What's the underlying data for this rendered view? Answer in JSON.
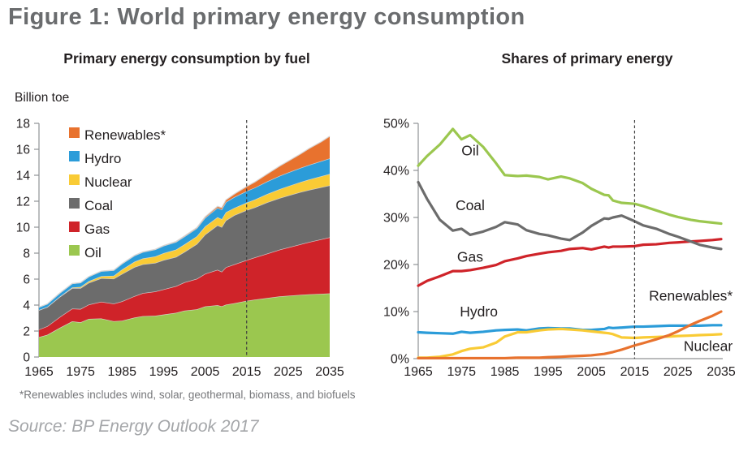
{
  "figure": {
    "title": "Figure 1: World primary energy consumption",
    "footnote": "*Renewables includes wind, solar, geothermal, biomass, and biofuels",
    "source": "Source: BP Energy Outlook 2017"
  },
  "colors": {
    "oil": "#9BC74F",
    "gas": "#CF2329",
    "coal": "#6C6C6C",
    "nuclear": "#F9CB35",
    "hydro": "#2B9CD9",
    "renewables": "#E8722E",
    "axis": "#909295",
    "area_edge": "#D8D8D8",
    "marker_dash": "#3F3F3F",
    "text": "#231F20",
    "title_gray": "#6A6C6E",
    "footnote_gray": "#77787B",
    "source_gray": "#A4A6A9"
  },
  "chart_data": [
    {
      "id": "consumption",
      "type": "area",
      "stacked": true,
      "title": "Primary energy consumption by fuel",
      "unit_label": "Billion toe",
      "grid": false,
      "legend_position": "top-left-inside",
      "marker_year": 2015,
      "ylim": [
        0,
        18
      ],
      "y_ticks": [
        0,
        2,
        4,
        6,
        8,
        10,
        12,
        14,
        16,
        18
      ],
      "y_tick_suffix": "",
      "x_ticks": [
        1965,
        1975,
        1985,
        1995,
        2005,
        2015,
        2025,
        2035
      ],
      "x": [
        1965,
        1967,
        1970,
        1973,
        1975,
        1977,
        1980,
        1983,
        1985,
        1988,
        1990,
        1993,
        1995,
        1998,
        2000,
        2003,
        2005,
        2008,
        2009,
        2010,
        2012,
        2015,
        2017,
        2020,
        2023,
        2025,
        2028,
        2030,
        2033,
        2035
      ],
      "series": [
        {
          "name": "Oil",
          "key": "oil",
          "values": [
            1.53,
            1.71,
            2.25,
            2.75,
            2.67,
            2.94,
            2.97,
            2.76,
            2.8,
            3.04,
            3.15,
            3.18,
            3.27,
            3.41,
            3.57,
            3.67,
            3.9,
            3.99,
            3.91,
            4.03,
            4.14,
            4.33,
            4.42,
            4.55,
            4.67,
            4.72,
            4.79,
            4.83,
            4.87,
            4.9
          ]
        },
        {
          "name": "Gas",
          "key": "gas",
          "values": [
            0.59,
            0.66,
            0.83,
            0.98,
            1.03,
            1.1,
            1.29,
            1.35,
            1.49,
            1.65,
            1.77,
            1.87,
            1.94,
            2.05,
            2.18,
            2.35,
            2.51,
            2.73,
            2.66,
            2.88,
            2.99,
            3.14,
            3.25,
            3.42,
            3.6,
            3.72,
            3.9,
            4.02,
            4.2,
            4.32
          ]
        },
        {
          "name": "Coal",
          "key": "coal",
          "values": [
            1.49,
            1.48,
            1.55,
            1.58,
            1.61,
            1.68,
            1.81,
            1.92,
            2.11,
            2.24,
            2.22,
            2.2,
            2.26,
            2.25,
            2.34,
            2.68,
            3.02,
            3.43,
            3.44,
            3.61,
            3.79,
            3.84,
            3.86,
            3.95,
            3.98,
            4.0,
            4.02,
            4.02,
            4.01,
            4.0
          ]
        },
        {
          "name": "Nuclear",
          "key": "nuclear",
          "values": [
            0.01,
            0.01,
            0.02,
            0.05,
            0.09,
            0.12,
            0.16,
            0.23,
            0.34,
            0.41,
            0.45,
            0.5,
            0.53,
            0.56,
            0.58,
            0.6,
            0.63,
            0.62,
            0.61,
            0.63,
            0.56,
            0.58,
            0.6,
            0.64,
            0.69,
            0.72,
            0.77,
            0.8,
            0.85,
            0.88
          ]
        },
        {
          "name": "Hydro",
          "key": "hydro",
          "values": [
            0.22,
            0.23,
            0.27,
            0.3,
            0.33,
            0.35,
            0.38,
            0.42,
            0.44,
            0.47,
            0.49,
            0.53,
            0.56,
            0.59,
            0.6,
            0.61,
            0.66,
            0.72,
            0.74,
            0.78,
            0.83,
            0.89,
            0.92,
            0.97,
            1.02,
            1.05,
            1.09,
            1.12,
            1.16,
            1.2
          ]
        },
        {
          "name": "Renewables*",
          "key": "renewables",
          "values": [
            0.0,
            0.0,
            0.0,
            0.0,
            0.0,
            0.0,
            0.01,
            0.01,
            0.01,
            0.02,
            0.02,
            0.02,
            0.03,
            0.04,
            0.05,
            0.06,
            0.08,
            0.12,
            0.14,
            0.17,
            0.24,
            0.36,
            0.44,
            0.58,
            0.76,
            0.88,
            1.08,
            1.27,
            1.5,
            1.71
          ]
        }
      ],
      "legend": [
        {
          "label": "Renewables*",
          "key": "renewables"
        },
        {
          "label": "Hydro",
          "key": "hydro"
        },
        {
          "label": "Nuclear",
          "key": "nuclear"
        },
        {
          "label": "Coal",
          "key": "coal"
        },
        {
          "label": "Gas",
          "key": "gas"
        },
        {
          "label": "Oil",
          "key": "oil"
        }
      ]
    },
    {
      "id": "shares",
      "type": "line",
      "title": "Shares of primary energy",
      "grid": false,
      "marker_year": 2015,
      "ylim": [
        0,
        50
      ],
      "y_ticks": [
        0,
        10,
        20,
        30,
        40,
        50
      ],
      "y_tick_suffix": "%",
      "x_ticks": [
        1965,
        1975,
        1985,
        1995,
        2005,
        2015,
        2025,
        2035
      ],
      "x": [
        1965,
        1967,
        1970,
        1973,
        1975,
        1977,
        1980,
        1983,
        1985,
        1988,
        1990,
        1993,
        1995,
        1998,
        2000,
        2003,
        2005,
        2008,
        2009,
        2010,
        2012,
        2015,
        2017,
        2020,
        2023,
        2025,
        2028,
        2030,
        2033,
        2035
      ],
      "series": [
        {
          "name": "Oil",
          "key": "oil",
          "values": [
            41.0,
            43.0,
            45.5,
            48.8,
            46.6,
            47.5,
            45.0,
            41.5,
            39.0,
            38.8,
            38.9,
            38.6,
            38.1,
            38.7,
            38.3,
            37.3,
            36.1,
            34.8,
            34.7,
            33.6,
            33.1,
            32.9,
            32.4,
            31.5,
            30.6,
            30.1,
            29.5,
            29.2,
            28.9,
            28.7
          ]
        },
        {
          "name": "Gas",
          "key": "gas",
          "values": [
            15.5,
            16.5,
            17.5,
            18.6,
            18.6,
            18.8,
            19.3,
            19.9,
            20.7,
            21.3,
            21.8,
            22.3,
            22.6,
            22.9,
            23.3,
            23.5,
            23.2,
            23.8,
            23.6,
            23.8,
            23.8,
            23.9,
            24.2,
            24.3,
            24.6,
            24.7,
            24.9,
            25.0,
            25.2,
            25.4
          ]
        },
        {
          "name": "Coal",
          "key": "coal",
          "values": [
            37.5,
            34.0,
            29.5,
            27.2,
            27.6,
            26.3,
            27.0,
            28.0,
            29.0,
            28.5,
            27.3,
            26.5,
            26.2,
            25.5,
            25.2,
            26.8,
            28.2,
            29.8,
            29.7,
            30.0,
            30.4,
            29.2,
            28.3,
            27.6,
            26.5,
            25.9,
            24.9,
            24.2,
            23.6,
            23.3
          ]
        },
        {
          "name": "Hydro",
          "key": "hydro",
          "values": [
            5.6,
            5.5,
            5.4,
            5.3,
            5.7,
            5.5,
            5.7,
            6.0,
            6.1,
            6.2,
            6.0,
            6.4,
            6.5,
            6.4,
            6.4,
            6.1,
            6.1,
            6.3,
            6.6,
            6.5,
            6.6,
            6.8,
            6.8,
            6.9,
            7.0,
            7.0,
            7.0,
            7.0,
            7.1,
            7.1
          ]
        },
        {
          "name": "Nuclear",
          "key": "nuclear",
          "values": [
            0.2,
            0.2,
            0.4,
            0.9,
            1.6,
            2.1,
            2.4,
            3.4,
            4.7,
            5.6,
            5.6,
            6.0,
            6.2,
            6.3,
            6.2,
            6.0,
            5.8,
            5.5,
            5.4,
            5.2,
            4.5,
            4.4,
            4.5,
            4.6,
            4.7,
            4.8,
            4.9,
            5.0,
            5.1,
            5.2
          ]
        },
        {
          "name": "Renewables*",
          "key": "renewables",
          "values": [
            0.1,
            0.1,
            0.1,
            0.1,
            0.1,
            0.1,
            0.1,
            0.1,
            0.1,
            0.2,
            0.2,
            0.2,
            0.3,
            0.4,
            0.5,
            0.6,
            0.7,
            1.0,
            1.2,
            1.4,
            1.9,
            2.8,
            3.3,
            4.1,
            5.0,
            5.8,
            7.2,
            8.0,
            9.1,
            10.0
          ]
        }
      ],
      "annotations": [
        {
          "label": "Oil",
          "year": 1977,
          "pct": 44.2
        },
        {
          "label": "Coal",
          "year": 1977,
          "pct": 32.6
        },
        {
          "label": "Gas",
          "year": 1977,
          "pct": 21.6
        },
        {
          "label": "Hydro",
          "year": 1979,
          "pct": 10.0
        },
        {
          "label": "Renewables*",
          "year": 2028,
          "pct": 13.4
        },
        {
          "label": "Nuclear",
          "year": 2032,
          "pct": 2.7
        }
      ]
    }
  ]
}
